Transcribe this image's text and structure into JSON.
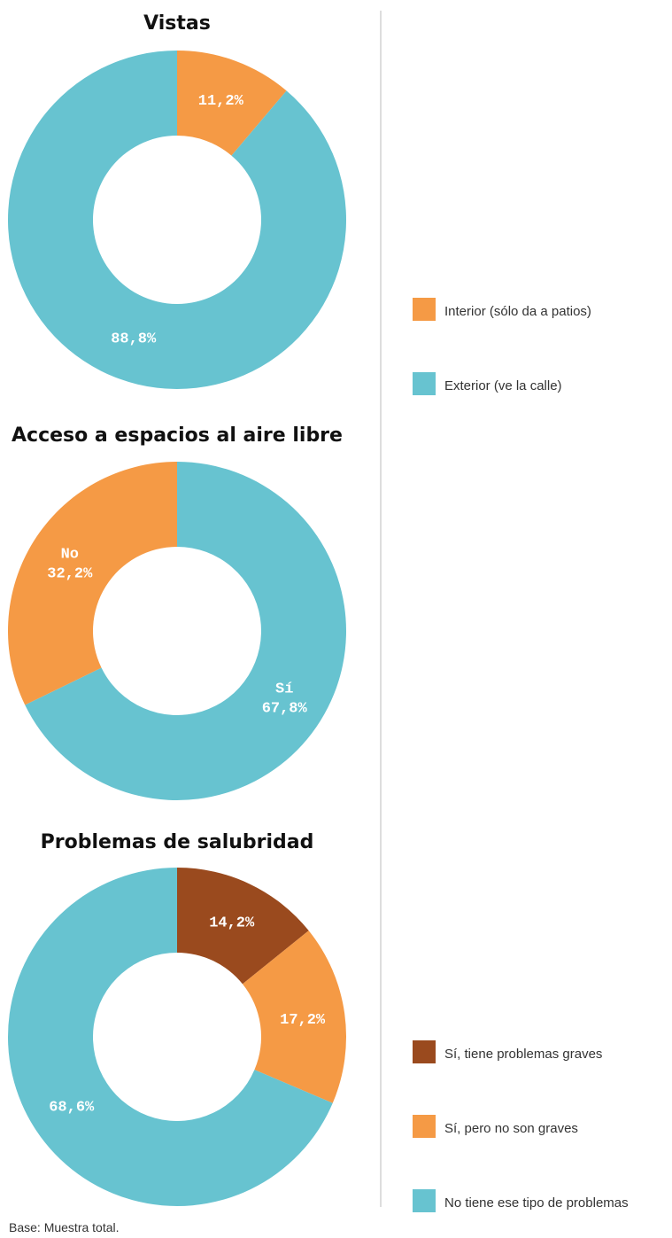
{
  "chart_data": [
    {
      "type": "donut",
      "title": "Vistas",
      "categories": [
        "Interior (sólo da a patios)",
        "Exterior (ve la calle)"
      ],
      "values": [
        11.2,
        88.8
      ],
      "value_labels": [
        "11,2%",
        "88,8%"
      ],
      "colors": [
        "#f59a45",
        "#67c3d0"
      ],
      "legend": true
    },
    {
      "type": "donut",
      "title": "Acceso a espacios al aire libre",
      "categories": [
        "Sí",
        "No"
      ],
      "values": [
        67.8,
        32.2
      ],
      "value_labels": [
        "67,8%",
        "32,2%"
      ],
      "colors": [
        "#67c3d0",
        "#f59a45"
      ],
      "legend": false
    },
    {
      "type": "donut",
      "title": "Problemas de salubridad",
      "categories": [
        "Sí, tiene problemas graves",
        "Sí, pero no son graves",
        "No tiene ese tipo de problemas"
      ],
      "values": [
        14.2,
        17.2,
        68.6
      ],
      "value_labels": [
        "14,2%",
        "17,2%",
        "68,6%"
      ],
      "colors": [
        "#9a4a1e",
        "#f59a45",
        "#67c3d0"
      ],
      "legend": true
    }
  ],
  "footnote": "Base: Muestra total."
}
